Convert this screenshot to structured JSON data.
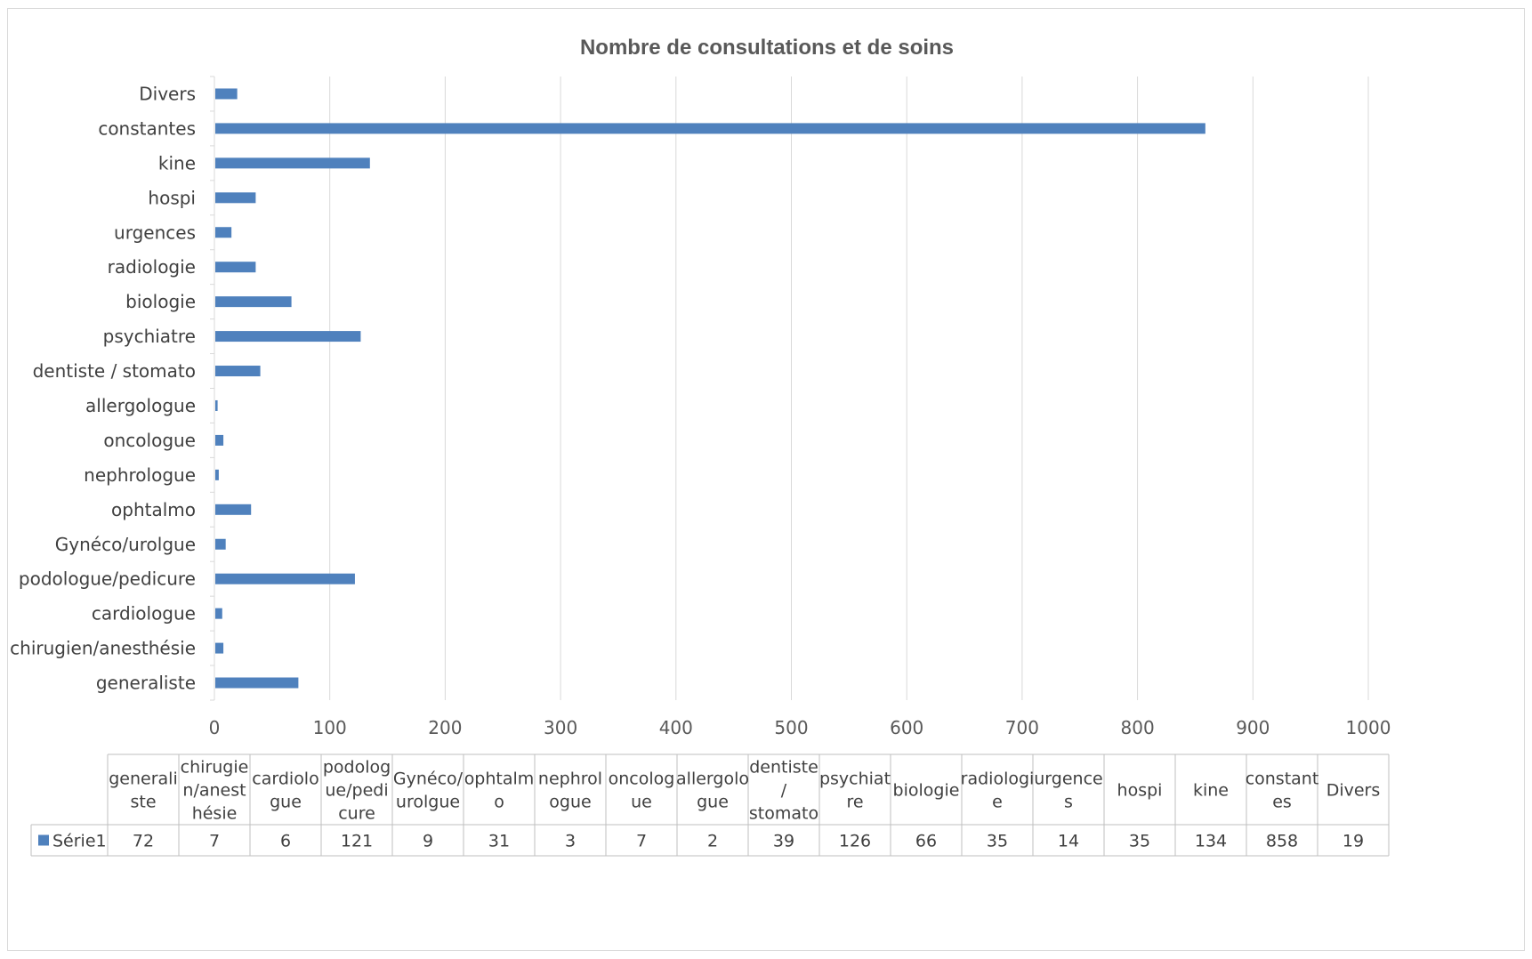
{
  "colors": {
    "bar": "#4f81bd",
    "grid": "#d9d9d9",
    "text": "#404040",
    "title": "#595959",
    "table_border": "#bfbfbf"
  },
  "chart_data": {
    "type": "bar",
    "orientation": "horizontal",
    "title": "Nombre de consultations et de soins",
    "categories": [
      "generaliste",
      "chirugien/anesthésie",
      "cardiologue",
      "podologue/pedicure",
      "Gynéco/urolgue",
      "ophtalmo",
      "nephrologue",
      "oncologue",
      "allergologue",
      "dentiste / stomato",
      "psychiatre",
      "biologie",
      "radiologie",
      "urgences",
      "hospi",
      "kine",
      "constantes",
      "Divers"
    ],
    "series": [
      {
        "name": "Série1",
        "values": [
          72,
          7,
          6,
          121,
          9,
          31,
          3,
          7,
          2,
          39,
          126,
          66,
          35,
          14,
          35,
          134,
          858,
          19
        ]
      }
    ],
    "xlim": [
      0,
      1000
    ],
    "x_ticks": [
      "0",
      "100",
      "200",
      "300",
      "400",
      "500",
      "600",
      "700",
      "800",
      "900",
      "1000"
    ],
    "grid": true,
    "legend": "data-table-bottom",
    "data_table": {
      "headers": [
        [
          "generali",
          "ste"
        ],
        [
          "chirugie",
          "n/anest",
          "hésie"
        ],
        [
          "cardiolo",
          "gue"
        ],
        [
          "podolog",
          "ue/pedi",
          "cure"
        ],
        [
          "Gynéco/",
          "urolgue"
        ],
        [
          "ophtalm",
          "o"
        ],
        [
          "nephrol",
          "ogue"
        ],
        [
          "oncolog",
          "ue"
        ],
        [
          "allergolo",
          "gue"
        ],
        [
          "dentiste",
          "/",
          "stomato"
        ],
        [
          "psychiat",
          "re"
        ],
        [
          "biologie"
        ],
        [
          "radiologi",
          "e"
        ],
        [
          "urgence",
          "s"
        ],
        [
          "hospi"
        ],
        [
          "kine"
        ],
        [
          "constant",
          "es"
        ],
        [
          "Divers"
        ]
      ]
    }
  }
}
